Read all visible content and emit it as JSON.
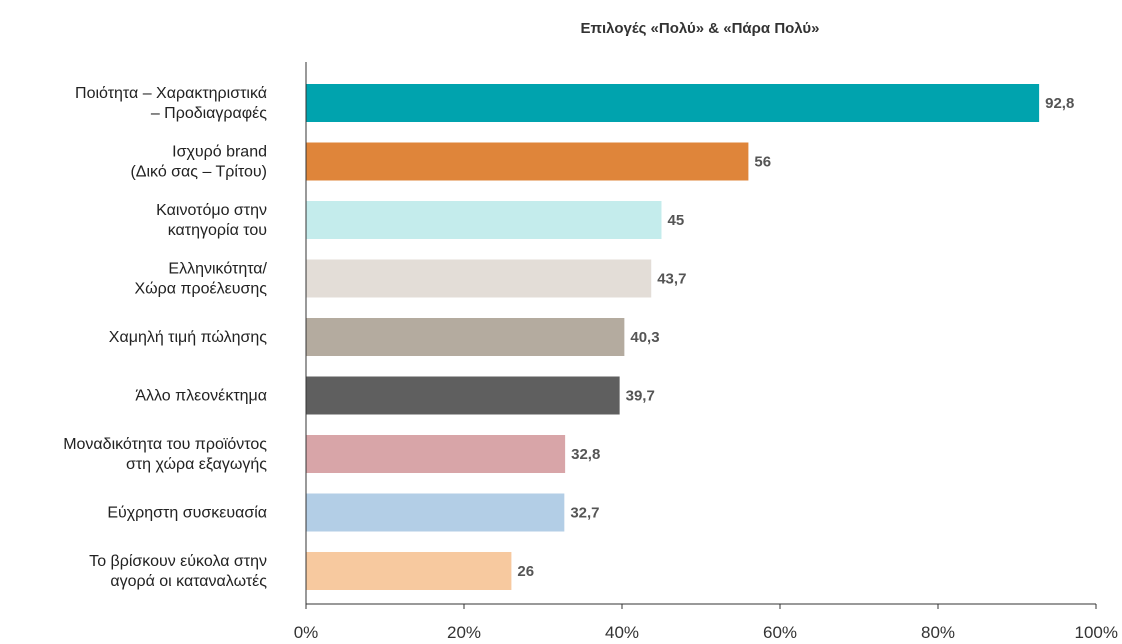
{
  "chart_data": {
    "type": "bar",
    "orientation": "horizontal",
    "title": "Επιλογές «Πολύ» & «Πάρα Πολύ»",
    "categories": [
      [
        "Ποιότητα – Χαρακτηριστικά",
        "– Προδιαγραφές"
      ],
      [
        "Ισχυρό brand",
        "(Δικό σας – Τρίτου)"
      ],
      [
        "Καινοτόμο στην",
        "κατηγορία του"
      ],
      [
        "Ελληνικότητα/",
        "Χώρα προέλευσης"
      ],
      [
        "Χαμηλή τιμή πώλησης"
      ],
      [
        "Άλλο πλεονέκτημα"
      ],
      [
        "Μοναδικότητα του προϊόντος",
        "στη χώρα εξαγωγής"
      ],
      [
        "Εύχρηστη συσκευασία"
      ],
      [
        "Το βρίσκουν εύκολα στην",
        "αγορά οι καταναλωτές"
      ]
    ],
    "values": [
      92.8,
      56,
      45,
      43.7,
      40.3,
      39.7,
      32.8,
      32.7,
      26
    ],
    "value_labels": [
      "92,8",
      "56",
      "45",
      "43,7",
      "40,3",
      "39,7",
      "32,8",
      "32,7",
      "26"
    ],
    "colors": [
      "#00A3AE",
      "#DF853A",
      "#C4ECEC",
      "#E3DDD7",
      "#B4AB9F",
      "#5F5F5F",
      "#D8A5A8",
      "#B3CEE6",
      "#F7C99F"
    ],
    "xlim": [
      0,
      100
    ],
    "xticks": [
      0,
      20,
      40,
      60,
      80,
      100
    ],
    "xtick_labels": [
      "0%",
      "20%",
      "40%",
      "60%",
      "80%",
      "100%"
    ],
    "grid": false
  }
}
